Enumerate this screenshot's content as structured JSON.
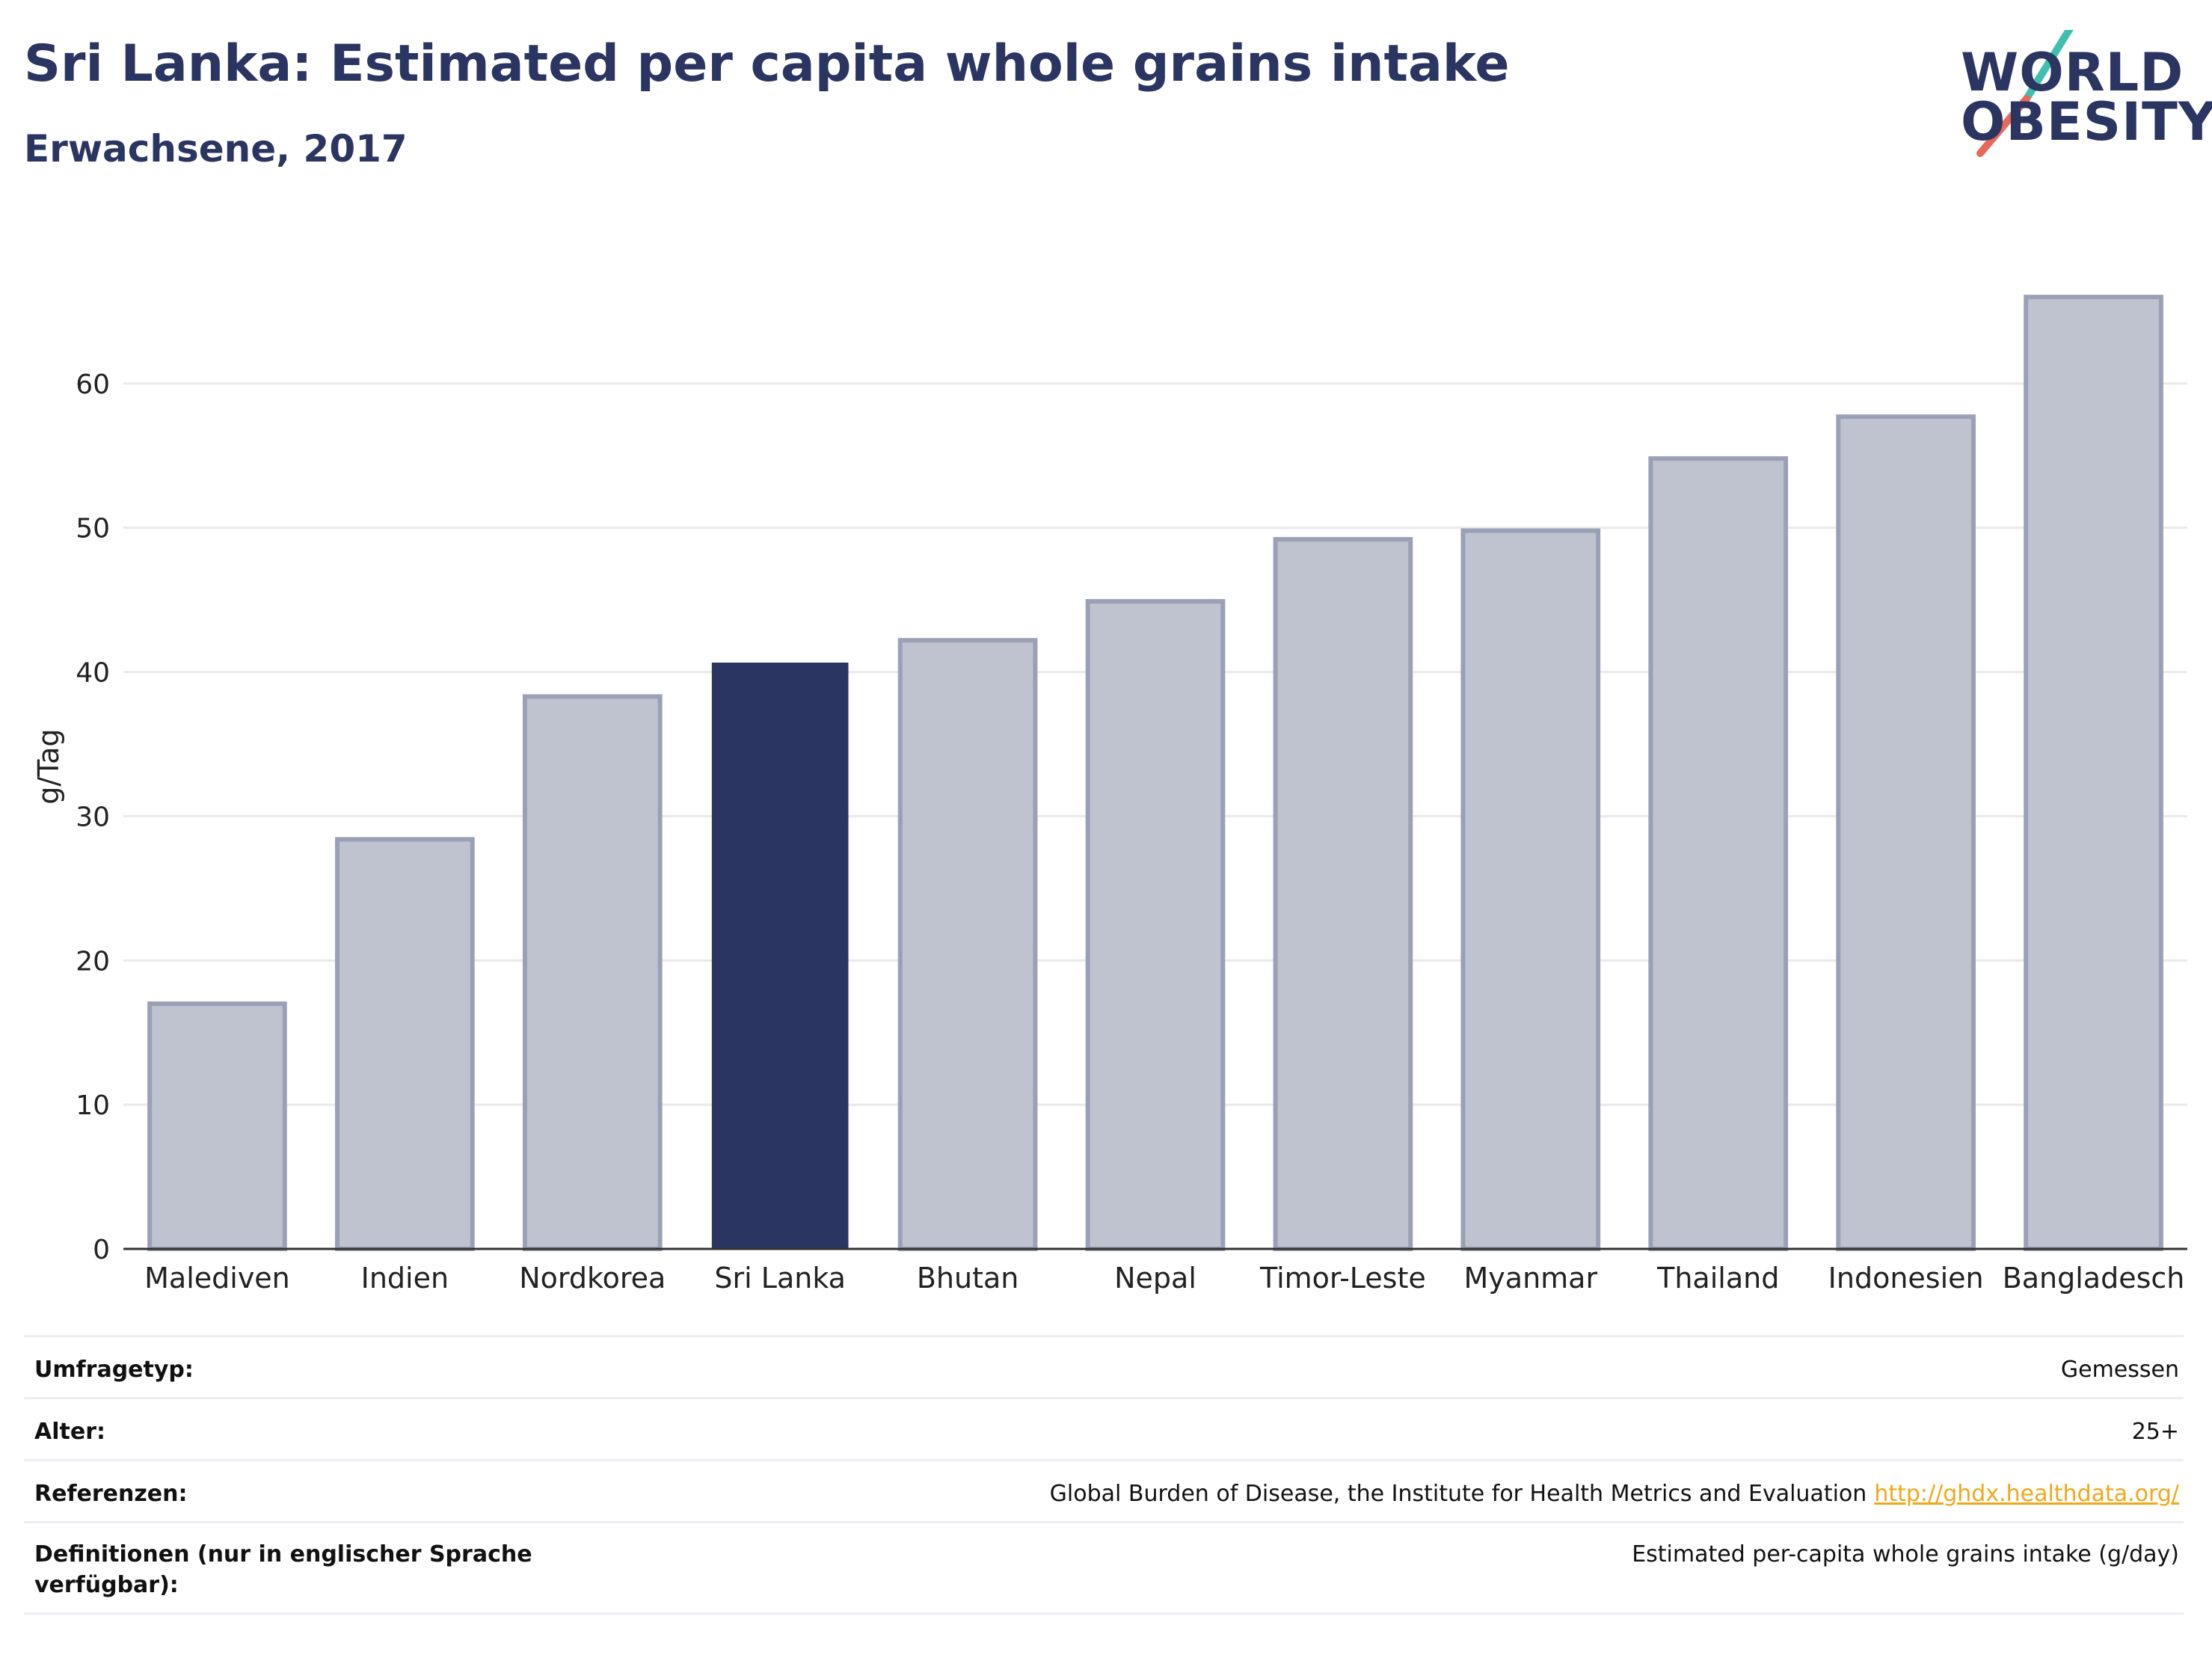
{
  "header": {
    "title": "Sri Lanka: Estimated per capita whole grains intake",
    "subtitle": "Erwachsene, 2017"
  },
  "logo": {
    "line1": "WORLD",
    "line2": "OBESITY",
    "slash_color_top": "#3fbfb0",
    "slash_color_bottom": "#e8685a"
  },
  "chart_data": {
    "type": "bar",
    "categories": [
      "Malediven",
      "Indien",
      "Nordkorea",
      "Sri Lanka",
      "Bhutan",
      "Nepal",
      "Timor-Leste",
      "Myanmar",
      "Thailand",
      "Indonesien",
      "Bangladesch"
    ],
    "values": [
      17.0,
      28.4,
      38.3,
      40.6,
      42.2,
      44.9,
      49.2,
      49.8,
      54.8,
      57.7,
      66.0
    ],
    "highlight": "Sri Lanka",
    "ylabel": "g/Tag",
    "ylim": [
      0,
      70
    ],
    "yticks": [
      0,
      10,
      20,
      30,
      40,
      50,
      60
    ],
    "grid": true,
    "colors": {
      "bar": "#bfc3cf",
      "bar_border": "#9aa0b6",
      "highlight": "#2b3561",
      "grid": "#e9e9ee",
      "axis": "#333333"
    }
  },
  "meta": {
    "survey_type_label": "Umfragetyp:",
    "survey_type_value": "Gemessen",
    "age_label": "Alter:",
    "age_value": "25+",
    "references_label": "Referenzen:",
    "references_value": "Global Burden of Disease, the Institute for Health Metrics and Evaluation",
    "references_link": "http://ghdx.healthdata.org/",
    "definitions_label": "Definitionen (nur in englischer Sprache verfügbar):",
    "definitions_value": "Estimated per-capita whole grains intake (g/day)"
  }
}
